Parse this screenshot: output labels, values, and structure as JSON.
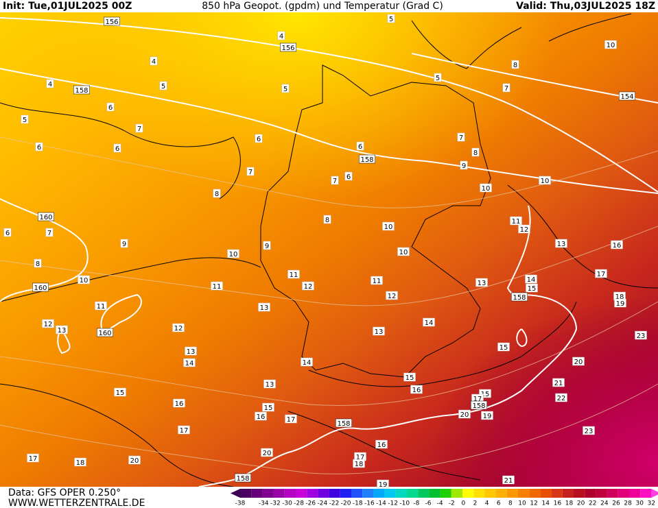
{
  "header": {
    "init": "Init: Tue,01JUL2025 00Z",
    "title": "850 hPa Geopot. (gpdm) und Temperatur (Grad C)",
    "valid": "Valid: Thu,03JUL2025 18Z"
  },
  "footer": {
    "data": "Data: GFS OPER 0.250°",
    "site": "WWW.WETTERZENTRALE.DE"
  },
  "map": {
    "geopotential_labels": [
      156,
      156,
      158,
      154,
      158,
      160,
      160,
      160,
      158,
      158,
      158,
      158
    ],
    "temperature_labels": [
      5,
      4,
      10,
      4,
      8,
      4,
      5,
      5,
      5,
      7,
      6,
      5,
      7,
      6,
      7,
      6,
      6,
      6,
      8,
      9,
      7,
      6,
      7,
      10,
      10,
      8,
      8,
      11,
      10,
      12,
      6,
      7,
      9,
      13,
      16,
      9,
      10,
      10,
      8,
      17,
      10,
      11,
      14,
      11,
      11,
      12,
      15,
      13,
      18,
      19,
      12,
      11,
      13,
      14,
      12,
      13,
      12,
      13,
      23,
      15,
      13,
      14,
      20,
      14,
      15,
      13,
      21,
      15,
      16,
      15,
      17,
      22,
      16,
      15,
      16,
      17,
      20,
      19,
      17,
      23,
      16,
      17,
      18,
      20,
      17,
      18,
      20,
      21,
      19
    ]
  },
  "colorbar": {
    "labels": [
      -38,
      -34,
      -32,
      -30,
      -28,
      -26,
      -24,
      -22,
      -20,
      -18,
      -16,
      -14,
      -12,
      -10,
      -8,
      -6,
      -4,
      -2,
      0,
      2,
      4,
      6,
      8,
      10,
      12,
      14,
      16,
      18,
      20,
      22,
      24,
      26,
      28,
      30,
      32
    ]
  }
}
